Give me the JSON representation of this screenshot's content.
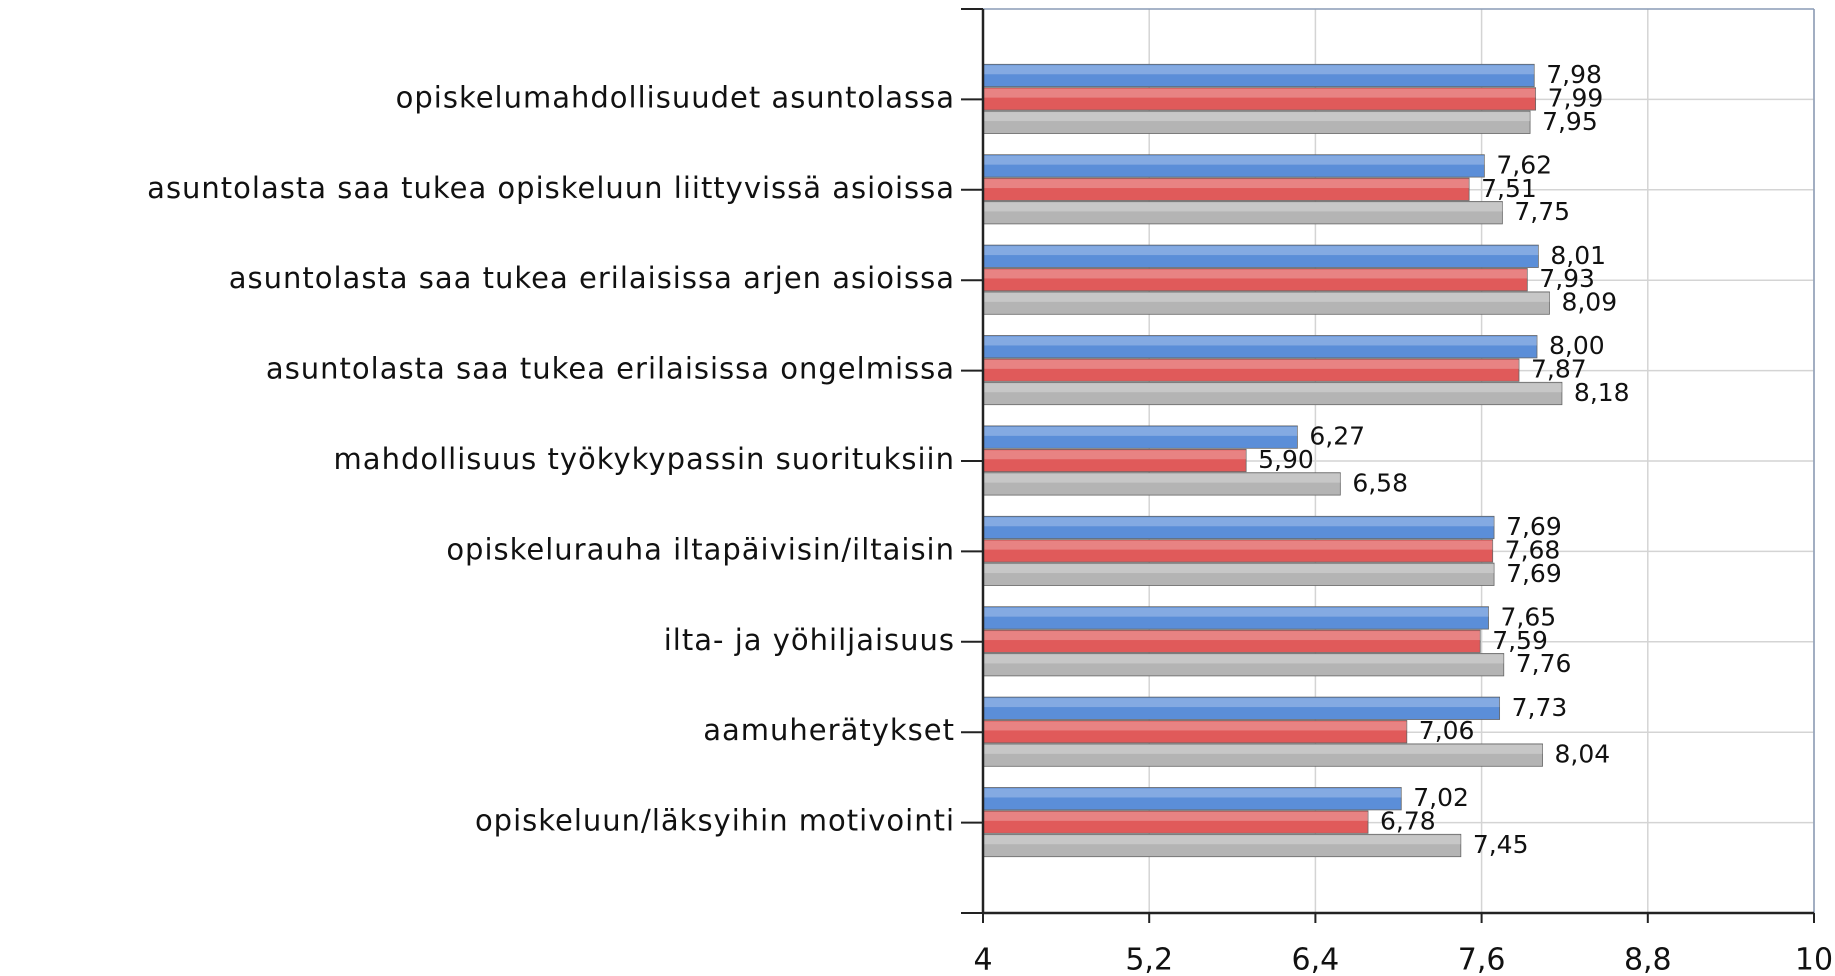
{
  "chart_data": {
    "type": "hbar",
    "categories": [
      "opiskelumahdollisuudet asuntolassa",
      "asuntolasta saa tukea opiskeluun liittyvissä asioissa",
      "asuntolasta saa tukea erilaisissa arjen asioissa",
      "asuntolasta saa tukea erilaisissa ongelmissa",
      "mahdollisuus työkykypassin suorituksiin",
      "opiskelurauha iltapäivisin/iltaisin",
      "ilta- ja yöhiljaisuus",
      "aamuherätykset",
      "opiskeluun/läksyihin motivointi"
    ],
    "series": [
      {
        "color": "#5b8ed8",
        "values": [
          7.98,
          7.62,
          8.01,
          8.0,
          6.27,
          7.69,
          7.65,
          7.73,
          7.02
        ],
        "value_labels": [
          "7,98",
          "7,62",
          "8,01",
          "8,00",
          "6,27",
          "7,69",
          "7,65",
          "7,73",
          "7,02"
        ]
      },
      {
        "color": "#e05a5a",
        "values": [
          7.99,
          7.51,
          7.93,
          7.87,
          5.9,
          7.68,
          7.59,
          7.06,
          6.78
        ],
        "value_labels": [
          "7,99",
          "7,51",
          "7,93",
          "7,87",
          "5,90",
          "7,68",
          "7,59",
          "7,06",
          "6,78"
        ]
      },
      {
        "color": "#b4b4b4",
        "values": [
          7.95,
          7.75,
          8.09,
          8.18,
          6.58,
          7.69,
          7.76,
          8.04,
          7.45
        ],
        "value_labels": [
          "7,95",
          "7,75",
          "8,09",
          "8,18",
          "6,58",
          "7,69",
          "7,76",
          "8,04",
          "7,45"
        ]
      }
    ],
    "xlim": [
      4,
      10
    ],
    "xticks": [
      4,
      {
        "value": 5.2,
        "label": "5,2"
      },
      {
        "value": 6.4,
        "label": "6,4"
      },
      {
        "value": 7.6,
        "label": "7,6"
      },
      {
        "value": 8.8,
        "label": "8,8"
      },
      10
    ],
    "grid": true
  }
}
